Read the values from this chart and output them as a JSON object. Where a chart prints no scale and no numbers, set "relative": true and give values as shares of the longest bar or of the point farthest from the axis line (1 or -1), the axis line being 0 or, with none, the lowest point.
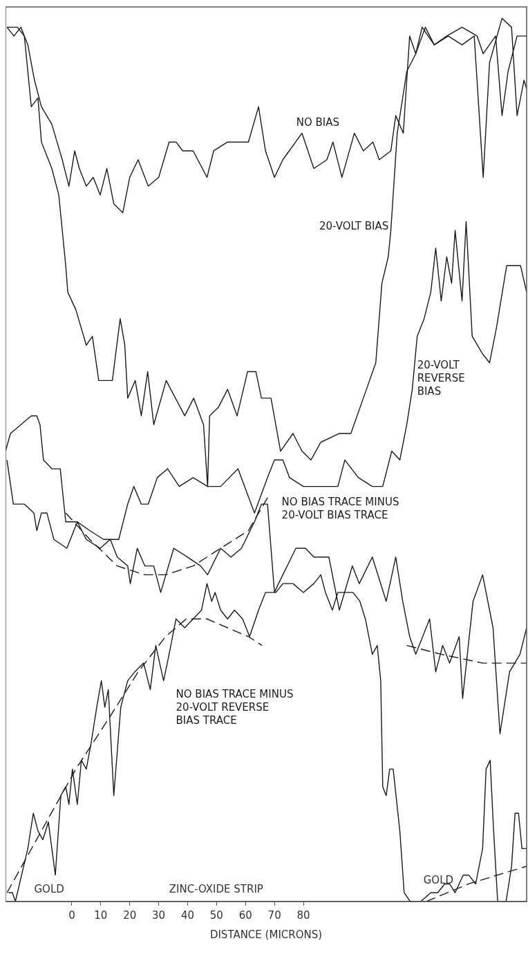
{
  "chart_data": {
    "type": "line",
    "relative": true,
    "xlabel": "DISTANCE (MICRONS)",
    "xlim": [
      -22.9,
      157.1
    ],
    "xticks": [
      0,
      10,
      20,
      30,
      40,
      50,
      60,
      70,
      80
    ],
    "tick_labels": "x",
    "grid": false,
    "legend": false,
    "marker": "none",
    "line_style": "solid",
    "series": [
      {
        "name": "NO BIAS",
        "color": "#1a1a1a",
        "x": [
          -22.4,
          -20,
          -17.6,
          -15.2,
          -12.9,
          -10.5,
          -6.9,
          -3.3,
          -1,
          1,
          2.6,
          5,
          7.4,
          9.8,
          12.1,
          14.5,
          17.6,
          20,
          22.9,
          26.4,
          30,
          33.6,
          36,
          38.3,
          41.9,
          46.7,
          49,
          53.8,
          57.4,
          61,
          64.5,
          66.9,
          70,
          72.9,
          79.5,
          83.6,
          88.1,
          90.2,
          93.3,
          97.6,
          100.7,
          104,
          106.2,
          110.2,
          111.9,
          114.5,
          116.7,
          118.8,
          121,
          125.2,
          130,
          134.8,
          139,
          142.1,
          144.3,
          148.6,
          151.9,
          153.8,
          156.2,
          157.1
        ],
        "values": [
          0.99,
          0.98,
          0.99,
          0.97,
          0.93,
          0.9,
          0.88,
          0.84,
          0.81,
          0.85,
          0.83,
          0.81,
          0.82,
          0.8,
          0.83,
          0.79,
          0.78,
          0.82,
          0.84,
          0.81,
          0.82,
          0.86,
          0.86,
          0.85,
          0.85,
          0.82,
          0.85,
          0.86,
          0.86,
          0.86,
          0.9,
          0.85,
          0.82,
          0.84,
          0.87,
          0.83,
          0.84,
          0.86,
          0.82,
          0.87,
          0.85,
          0.86,
          0.84,
          0.85,
          0.89,
          0.87,
          0.98,
          0.96,
          0.99,
          0.97,
          0.98,
          0.97,
          0.98,
          0.82,
          0.95,
          1,
          0.99,
          0.89,
          0.93,
          0.92
        ]
      },
      {
        "name": "20-VOLT BIAS",
        "color": "#1a1a1a",
        "x": [
          -22.4,
          -18.8,
          -16.4,
          -14,
          -11.7,
          -10.5,
          -6.9,
          -4.5,
          -3.3,
          -2.1,
          -1.4,
          1.4,
          5,
          7.1,
          9.3,
          11.9,
          14,
          16.7,
          18.3,
          19.3,
          21.9,
          24,
          26.2,
          28.3,
          32.6,
          39,
          42.1,
          45.5,
          46.9,
          47.6,
          50.7,
          53.8,
          57.1,
          60.7,
          63.6,
          65.5,
          68.8,
          72.1,
          76.4,
          79.5,
          82.6,
          86,
          92.4,
          96.4,
          100.7,
          105,
          107.1,
          109.3,
          110.2,
          112.4,
          115.7,
          118.8,
          122.1,
          125.2,
          129.5,
          134.8,
          140,
          142.1,
          146.4,
          148.6,
          150.7,
          153.8,
          157.1
        ],
        "values": [
          0.99,
          0.99,
          0.98,
          0.9,
          0.91,
          0.86,
          0.83,
          0.8,
          0.76,
          0.72,
          0.69,
          0.67,
          0.63,
          0.64,
          0.59,
          0.59,
          0.59,
          0.66,
          0.63,
          0.57,
          0.59,
          0.55,
          0.6,
          0.54,
          0.59,
          0.55,
          0.57,
          0.54,
          0.47,
          0.55,
          0.56,
          0.58,
          0.55,
          0.6,
          0.6,
          0.57,
          0.57,
          0.51,
          0.53,
          0.51,
          0.5,
          0.52,
          0.53,
          0.53,
          0.57,
          0.61,
          0.7,
          0.73,
          0.76,
          0.87,
          0.94,
          0.96,
          0.99,
          0.97,
          0.98,
          0.99,
          0.98,
          0.96,
          0.98,
          0.89,
          0.94,
          0.98,
          0.98
        ]
      },
      {
        "name": "20-VOLT REVERSE BIAS",
        "color": "#1a1a1a",
        "x": [
          -22.9,
          -21.2,
          -17.6,
          -14,
          -12.1,
          -11,
          -9.8,
          -6.9,
          -4,
          -2.1,
          1.9,
          6.2,
          11,
          16.2,
          19.3,
          21.4,
          24,
          26.4,
          29.5,
          33.1,
          37.1,
          41.9,
          46.9,
          51.4,
          57.4,
          63.1,
          67.6,
          70,
          72.9,
          75.2,
          80,
          84.8,
          88.3,
          91.9,
          94.3,
          99,
          103.8,
          107.4,
          110.5,
          113.3,
          115.7,
          117.6,
          119.3,
          121.7,
          124,
          125.7,
          127.6,
          129.5,
          131.2,
          132.4,
          134.8,
          136.2,
          138.3,
          141.9,
          144.3,
          146.7,
          150.2,
          152.6,
          155,
          157.1
        ],
        "values": [
          0.51,
          0.53,
          0.54,
          0.55,
          0.55,
          0.54,
          0.5,
          0.49,
          0.49,
          0.43,
          0.43,
          0.42,
          0.41,
          0.41,
          0.45,
          0.47,
          0.45,
          0.45,
          0.48,
          0.49,
          0.47,
          0.48,
          0.47,
          0.47,
          0.49,
          0.44,
          0.48,
          0.5,
          0.5,
          0.48,
          0.47,
          0.47,
          0.47,
          0.47,
          0.5,
          0.48,
          0.47,
          0.47,
          0.51,
          0.5,
          0.54,
          0.58,
          0.64,
          0.66,
          0.69,
          0.74,
          0.68,
          0.73,
          0.7,
          0.76,
          0.68,
          0.77,
          0.64,
          0.62,
          0.61,
          0.65,
          0.72,
          0.72,
          0.72,
          0.69
        ]
      },
      {
        "name": "NO BIAS TRACE MINUS 20-VOLT BIAS TRACE",
        "color": "#1a1a1a",
        "x": [
          -22.4,
          -20.2,
          -16.4,
          -13.1,
          -12.1,
          -10.5,
          -8.6,
          -6.2,
          -1.7,
          1.9,
          5,
          9.8,
          13.3,
          15.7,
          19.3,
          20.2,
          22.6,
          25.2,
          28.3,
          30.7,
          35.2,
          40,
          44.5,
          46.9,
          51.4,
          55,
          58.6,
          63.1,
          65.5,
          67.6,
          70,
          71.4,
          77.4,
          80.7,
          83.6,
          88.8,
          92.4,
          96.9,
          99.3,
          103.8,
          108.6,
          111.9,
          114.3,
          116.7,
          118.8,
          121.2,
          123.6,
          125.7,
          128.1,
          130.5,
          133.8,
          135,
          138.6,
          141.9,
          145.5,
          147.9,
          151.2,
          154.8,
          157.1
        ],
        "values": [
          0.5,
          0.45,
          0.45,
          0.44,
          0.42,
          0.44,
          0.44,
          0.41,
          0.4,
          0.43,
          0.41,
          0.4,
          0.41,
          0.39,
          0.38,
          0.36,
          0.4,
          0.38,
          0.38,
          0.35,
          0.4,
          0.39,
          0.38,
          0.37,
          0.4,
          0.39,
          0.4,
          0.43,
          0.45,
          0.45,
          0.35,
          0.36,
          0.4,
          0.4,
          0.39,
          0.39,
          0.33,
          0.38,
          0.36,
          0.39,
          0.34,
          0.39,
          0.34,
          0.3,
          0.28,
          0.3,
          0.32,
          0.26,
          0.29,
          0.27,
          0.3,
          0.23,
          0.34,
          0.37,
          0.31,
          0.19,
          0.26,
          0.28,
          0.31
        ]
      },
      {
        "name": "NO BIAS TRACE MINUS 20-VOLT REVERSE BIAS TRACE",
        "color": "#1a1a1a",
        "x": [
          -21.9,
          -20.5,
          -19.5,
          -15.2,
          -13.3,
          -11.7,
          -10,
          -8.1,
          -5.7,
          -3.8,
          -2.1,
          -1,
          0.2,
          1.9,
          3.3,
          5,
          6.7,
          8.6,
          10.2,
          11.4,
          12.6,
          14.5,
          16.9,
          19.3,
          21.7,
          24.8,
          27.1,
          29,
          31.7,
          33.6,
          36,
          39,
          41.9,
          44.8,
          46.7,
          48.3,
          49.5,
          51.4,
          53.8,
          56.2,
          59,
          61.4,
          64.5,
          66.9,
          70.5,
          72.9,
          76.4,
          80,
          83.6,
          86,
          87.6,
          90,
          91.9,
          94.3,
          97.1,
          99.5,
          101.4,
          103.8,
          105.5,
          106.7,
          107.4,
          108.6,
          109.8,
          111,
          113.3,
          114.8,
          116.9,
          120.5,
          124,
          126.4,
          128.8,
          130.5,
          132.4,
          135.2,
          137.1,
          139.5,
          141.9,
          143.1,
          144.5,
          145.7,
          147.1,
          150,
          151.9,
          153.1,
          154.3,
          155.5,
          157.1
        ],
        "values": [
          0.01,
          0.01,
          0,
          0.06,
          0.1,
          0.08,
          0.07,
          0.09,
          0.03,
          0.12,
          0.13,
          0.11,
          0.15,
          0.11,
          0.16,
          0.15,
          0.18,
          0.22,
          0.25,
          0.22,
          0.24,
          0.12,
          0.22,
          0.25,
          0.26,
          0.27,
          0.24,
          0.29,
          0.25,
          0.28,
          0.32,
          0.31,
          0.32,
          0.33,
          0.36,
          0.34,
          0.35,
          0.33,
          0.32,
          0.33,
          0.32,
          0.3,
          0.33,
          0.35,
          0.35,
          0.36,
          0.36,
          0.35,
          0.36,
          0.37,
          0.35,
          0.33,
          0.35,
          0.35,
          0.35,
          0.34,
          0.32,
          0.28,
          0.29,
          0.25,
          0.13,
          0.12,
          0.15,
          0.15,
          0.08,
          0.01,
          0,
          0,
          0.01,
          0.01,
          0.02,
          0.02,
          0.01,
          0.03,
          0.03,
          0.02,
          0.06,
          0.15,
          0.16,
          0.08,
          0,
          0,
          0.04,
          0.1,
          0.1,
          0.06,
          0.06
        ]
      },
      {
        "color": "#1a1a1a",
        "line_style": "dashed",
        "x": [
          -2.1,
          6.2,
          15.7,
          25.2,
          32.4,
          41.9,
          51.4,
          61,
          68.1
        ],
        "values": [
          0.44,
          0.41,
          0.38,
          0.37,
          0.37,
          0.38,
          0.4,
          0.42,
          0.46
        ]
      },
      {
        "color": "#1a1a1a",
        "line_style": "dashed",
        "x": [
          115.7,
          127.6,
          141.9,
          157.1
        ],
        "values": [
          0.29,
          0.28,
          0.27,
          0.27
        ]
      },
      {
        "color": "#1a1a1a",
        "line_style": "dashed",
        "x": [
          -22.4,
          -10.5,
          1.4,
          13.3,
          22.9,
          32.4,
          39.5,
          46.7,
          53.8,
          61,
          65.7
        ],
        "values": [
          0.01,
          0.08,
          0.15,
          0.21,
          0.26,
          0.3,
          0.32,
          0.32,
          0.31,
          0.3,
          0.29
        ]
      },
      {
        "color": "#1a1a1a",
        "line_style": "dashed",
        "x": [
          122.4,
          137.1,
          157.1
        ],
        "values": [
          0,
          0.02,
          0.04
        ]
      }
    ],
    "annotations": [
      "GOLD",
      "ZINC-OXIDE STRIP",
      "GOLD"
    ]
  }
}
